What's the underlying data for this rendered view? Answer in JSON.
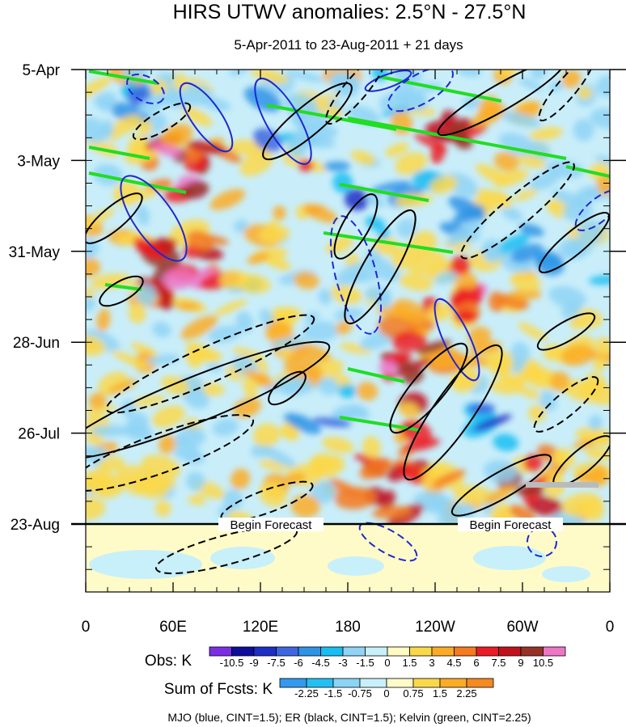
{
  "chart_data": {
    "type": "heatmap",
    "title": "HIRS UTWV anomalies: 2.5°N - 27.5°N",
    "subtitle": "5-Apr-2011 to 23-Aug-2011 + 21 days",
    "x_tick_labels": [
      "0",
      "60E",
      "120E",
      "180",
      "120W",
      "60W",
      "0"
    ],
    "y_tick_labels": [
      "5-Apr",
      "3-May",
      "31-May",
      "28-Jun",
      "26-Jul",
      "23-Aug"
    ],
    "forecast_label": "Begin Forecast",
    "obs_colorbar": {
      "label": "Obs: K",
      "levels": [
        "-10.5",
        "-9",
        "-7.5",
        "-6",
        "-4.5",
        "-3",
        "-1.5",
        "0",
        "1.5",
        "3",
        "4.5",
        "6",
        "7.5",
        "9",
        "10.5"
      ],
      "colors": [
        "#7b2ee6",
        "#0e0e9a",
        "#1d2fc4",
        "#3c67e0",
        "#2f93e6",
        "#18bdf2",
        "#8fd3f5",
        "#c7f0fb",
        "#fff9c2",
        "#fbd84a",
        "#fbab25",
        "#f57a20",
        "#ec1c24",
        "#c1121c",
        "#973226",
        "#ee76c6"
      ]
    },
    "fcst_colorbar": {
      "label": "Sum of Fcsts: K",
      "levels": [
        "-2.25",
        "-1.5",
        "-0.75",
        "0",
        "0.75",
        "1.5",
        "2.25"
      ],
      "colors": [
        "#3399ee",
        "#22c0f2",
        "#88d5f5",
        "#c8f0fb",
        "#fffbc8",
        "#fbd84a",
        "#fbab25",
        "#f58a20"
      ]
    },
    "footer": "MJO (blue, CINT=1.5); ER (black, CINT=1.5); Kelvin (green, CINT=2.25)"
  }
}
